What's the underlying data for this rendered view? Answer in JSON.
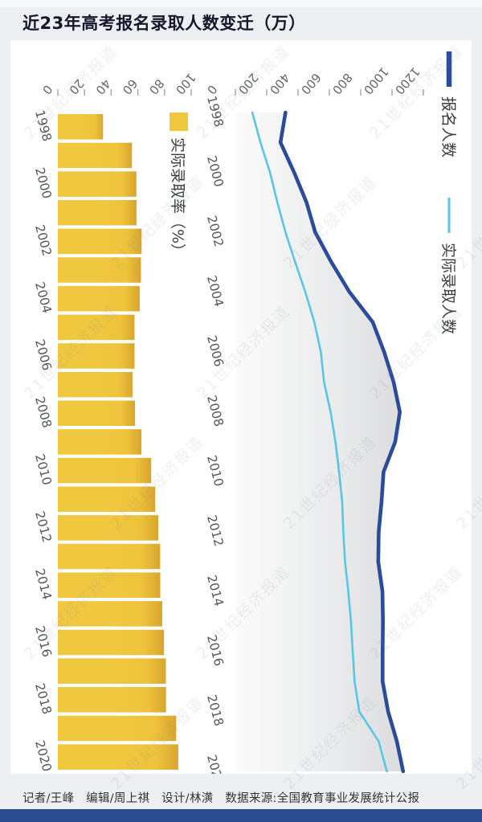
{
  "page": {
    "title": "近23年高考报名录取人数变迁（万）",
    "watermark_text": "21世纪经济报道",
    "footer_text": "记者/王峰　编辑/周上祺　设计/林潢　数据来源:全国教育事业发展统计公报",
    "colors": {
      "background": "#edeff3",
      "card": "#ffffff",
      "title_text": "#15172b",
      "bottom_bar": "#2b4a8f",
      "bar_yellow": "#F0C840",
      "bar_tip_yellow": "#D8A52F",
      "registrations_blue": "#2B4C9C",
      "admissions_cyan": "#59C5E7",
      "area_gray_dark": "#D5D6D8",
      "area_gray_light": "#FBFBFB"
    }
  },
  "chart_data": [
    {
      "type": "bar",
      "title": "实际录取率（%）",
      "legend": "实际录取率（%）",
      "color": "#F0C840",
      "categories": [
        "1998",
        "1999",
        "2000",
        "2001",
        "2002",
        "2003",
        "2004",
        "2005",
        "2006",
        "2007",
        "2008",
        "2009",
        "2010",
        "2011",
        "2012",
        "2013",
        "2014",
        "2015",
        "2016",
        "2017",
        "2018",
        "2019",
        "2020"
      ],
      "values": [
        33.9,
        55.6,
        58.9,
        59.0,
        62.8,
        62.3,
        61.4,
        57.5,
        57.5,
        56.0,
        57.9,
        62.7,
        70.0,
        73.0,
        75.3,
        76.7,
        76.8,
        78.3,
        79.6,
        81.0,
        81.1,
        88.7,
        90.3
      ],
      "xlabel": "",
      "ylabel": "实际录取率（%）",
      "ylim": [
        0,
        100
      ],
      "ticks": [
        0,
        20,
        40,
        60,
        80,
        100
      ],
      "tick_labels_shown": [
        "1998",
        "2000",
        "2002",
        "2004",
        "2006",
        "2008",
        "2010",
        "2012",
        "2014",
        "2016",
        "2018",
        "2020"
      ],
      "grid": false
    },
    {
      "type": "line",
      "categories": [
        "1998",
        "1999",
        "2000",
        "2001",
        "2002",
        "2003",
        "2004",
        "2005",
        "2006",
        "2007",
        "2008",
        "2009",
        "2010",
        "2011",
        "2012",
        "2013",
        "2014",
        "2015",
        "2016",
        "2017",
        "2018",
        "2019",
        "2020"
      ],
      "series": [
        {
          "name": "报名人数",
          "color": "#2B4C9C",
          "values": [
            320,
            288,
            375,
            454,
            510,
            613,
            729,
            877,
            950,
            1010,
            1050,
            1020,
            946,
            933,
            915,
            912,
            939,
            942,
            940,
            940,
            975,
            1031,
            1071
          ]
        },
        {
          "name": "实际录取人数",
          "color": "#59C5E7",
          "values": [
            108,
            160,
            221,
            268,
            320,
            382,
            447,
            504,
            546,
            566,
            608,
            639,
            662,
            682,
            689,
            700,
            721,
            738,
            749,
            761,
            791,
            915,
            967
          ]
        }
      ],
      "unit": "万",
      "ylim": [
        0,
        1200
      ],
      "ticks": [
        0,
        200,
        400,
        600,
        800,
        1000,
        1200
      ],
      "tick_labels_shown": [
        "1998",
        "2000",
        "2002",
        "2004",
        "2006",
        "2008",
        "2010",
        "2012",
        "2014",
        "2016",
        "2018",
        "2020"
      ],
      "area_fill": "gray-gradient-under-报名人数",
      "legend_position": "top",
      "grid": false
    }
  ]
}
